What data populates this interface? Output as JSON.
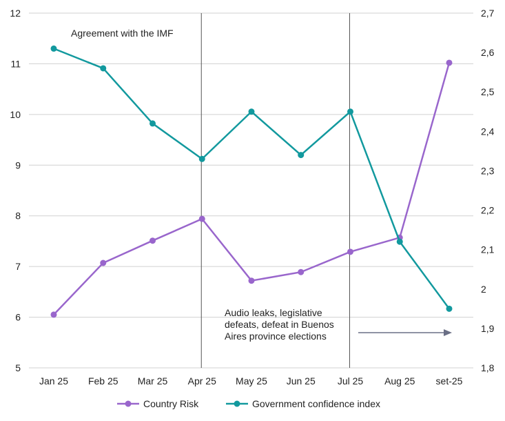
{
  "chart_data": {
    "type": "line",
    "categories": [
      "Jan 25",
      "Feb 25",
      "Mar 25",
      "Apr 25",
      "May 25",
      "Jun 25",
      "Jul 25",
      "Aug 25",
      "set-25"
    ],
    "left_axis": {
      "ylim": [
        5,
        12
      ],
      "ticks": [
        "5",
        "6",
        "7",
        "8",
        "9",
        "10",
        "11",
        "12"
      ]
    },
    "right_axis": {
      "ylim": [
        1.8,
        2.7
      ],
      "ticks": [
        "1,8",
        "1,9",
        "2",
        "2,1",
        "2,2",
        "2,3",
        "2,4",
        "2,5",
        "2,6",
        "2,7"
      ]
    },
    "grid": true,
    "legend_position": "bottom",
    "series": [
      {
        "name": "Country Risk",
        "axis": "left",
        "color": "#9966cc",
        "values": [
          6.05,
          7.07,
          7.51,
          7.94,
          6.72,
          6.89,
          7.29,
          7.57,
          11.02
        ]
      },
      {
        "name": "Government confidence index",
        "axis": "right",
        "color": "#12999e",
        "values": [
          2.61,
          2.56,
          2.42,
          2.33,
          2.45,
          2.34,
          2.45,
          2.12,
          1.95
        ]
      }
    ],
    "annotations": [
      {
        "category": "Apr 25",
        "text_lines": [
          "Agreement with the IMF"
        ]
      },
      {
        "category": "Jul 25",
        "text_lines": [
          "Audio leaks, legislative",
          "defeats, defeat in Buenos",
          "Aires province elections"
        ]
      }
    ]
  }
}
